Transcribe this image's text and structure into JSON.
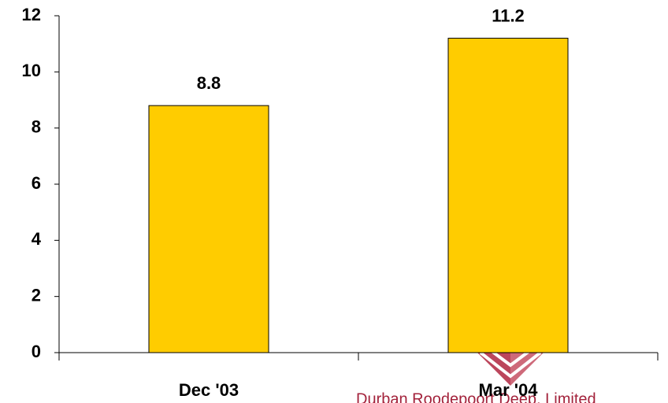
{
  "chart_data": {
    "type": "bar",
    "categories": [
      "Dec '03",
      "Mar '04"
    ],
    "values": [
      8.8,
      11.2
    ],
    "color": "#ffcc00",
    "ylim": [
      0,
      12
    ],
    "yticks": [
      0,
      2,
      4,
      6,
      8,
      10,
      12
    ],
    "grid": false,
    "watermark": "Durban Roodepoort Deep, Limited"
  }
}
